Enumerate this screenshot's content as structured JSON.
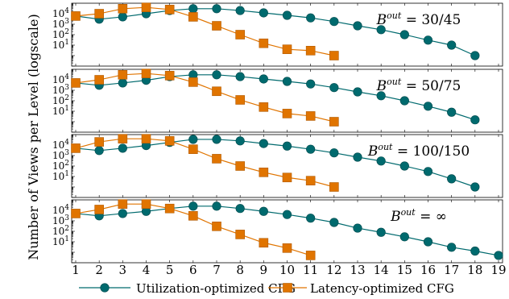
{
  "chart_data": {
    "type": "line",
    "ylabel": "Number of Views per Level (logscale)",
    "y_scale": "log",
    "ylim_exponents": [
      -1,
      5
    ],
    "x": [
      1,
      2,
      3,
      4,
      5,
      6,
      7,
      8,
      9,
      10,
      11,
      12,
      13,
      14,
      15,
      16,
      17,
      18,
      19
    ],
    "x_tick_labels": [
      "1",
      "2",
      "3",
      "4",
      "5",
      "6",
      "7",
      "8",
      "9",
      "10",
      "11",
      "12",
      "13",
      "14",
      "15",
      "16",
      "17",
      "18",
      "19"
    ],
    "y_tick_labels": [
      "10^1",
      "10^2",
      "10^3",
      "10^4"
    ],
    "legend": [
      {
        "name": "Utilization-optimized CFG",
        "color": "#006a6e",
        "marker": "circle"
      },
      {
        "name": "Latency-optimized CFG",
        "color": "#e07400",
        "marker": "square"
      }
    ],
    "legend_placement": "bottom",
    "panels": [
      {
        "label_base": "B",
        "label_sup": "out",
        "label_rest": "= 30/45",
        "series": [
          {
            "name": "Utilization-optimized CFG",
            "values": [
              6000,
              3000,
              5000,
              10000,
              20000,
              30000,
              30000,
              20000,
              12000,
              7000,
              4000,
              1800,
              700,
              300,
              100,
              30,
              10,
              1
            ]
          },
          {
            "name": "Latency-optimized CFG",
            "values": [
              6000,
              10000,
              30000,
              40000,
              25000,
              5000,
              700,
              100,
              15,
              4,
              3,
              1
            ]
          }
        ]
      },
      {
        "label_base": "B",
        "label_sup": "out",
        "label_rest": "= 50/75",
        "series": [
          {
            "name": "Utilization-optimized CFG",
            "values": [
              5000,
              3000,
              5000,
              9000,
              20000,
              30000,
              30000,
              20000,
              12000,
              7000,
              4000,
              1800,
              700,
              300,
              100,
              30,
              8,
              1.5
            ]
          },
          {
            "name": "Latency-optimized CFG",
            "values": [
              5000,
              10000,
              30000,
              40000,
              25000,
              6000,
              800,
              120,
              25,
              6,
              3.5,
              1
            ]
          }
        ]
      },
      {
        "label_base": "B",
        "label_sup": "out",
        "label_rest": "= 100/150",
        "series": [
          {
            "name": "Utilization-optimized CFG",
            "values": [
              5000,
              3000,
              5000,
              9000,
              18000,
              35000,
              35000,
              25000,
              14000,
              8000,
              4000,
              1800,
              700,
              300,
              100,
              30,
              6,
              1
            ]
          },
          {
            "name": "Latency-optimized CFG",
            "values": [
              5000,
              20000,
              40000,
              40000,
              25000,
              4000,
              500,
              100,
              25,
              8,
              4,
              1
            ]
          }
        ]
      },
      {
        "label_base": "B",
        "label_sup": "out",
        "label_rest": "= ∞",
        "series": [
          {
            "name": "Utilization-optimized CFG",
            "values": [
              5000,
              3000,
              5000,
              8000,
              15000,
              25000,
              25000,
              15000,
              8000,
              4000,
              1800,
              700,
              200,
              80,
              30,
              10,
              3,
              1.3,
              0.5
            ]
          },
          {
            "name": "Latency-optimized CFG",
            "values": [
              5000,
              12000,
              40000,
              40000,
              15000,
              3000,
              300,
              50,
              8,
              2.5,
              0.5
            ]
          }
        ]
      }
    ]
  }
}
